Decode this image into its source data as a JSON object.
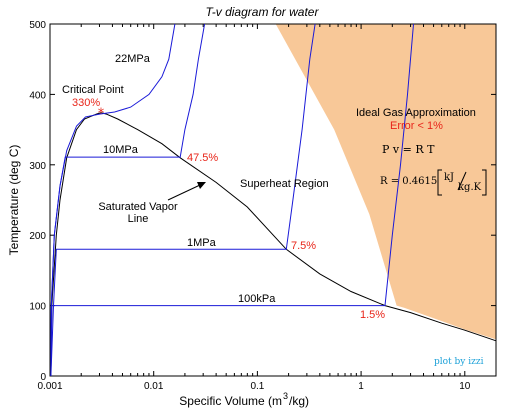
{
  "chart_data": {
    "type": "line",
    "title": "T-v diagram for water",
    "xlabel": "Specific Volume (m",
    "xlabel_sup": "3",
    "xlabel_tail": "/kg)",
    "ylabel": "Temperature (deg C)",
    "x_scale": "log",
    "xlim": [
      0.001,
      20
    ],
    "ylim": [
      0,
      500
    ],
    "x_ticks": [
      0.001,
      0.01,
      0.1,
      1,
      10
    ],
    "x_tick_labels": [
      "0.001",
      "0.01",
      "0.1",
      "1",
      "10"
    ],
    "y_ticks": [
      0,
      100,
      200,
      300,
      400,
      500
    ],
    "y_tick_labels": [
      "0",
      "100",
      "200",
      "300",
      "400",
      "500"
    ],
    "grid": false,
    "colors": {
      "saturation": "#000000",
      "isobar": "#1a1ad8",
      "ideal_gas_region": "#f8c898",
      "label_red": "#e8251a",
      "credit": "#1aa0d8"
    },
    "saturation_dome": {
      "points": [
        [
          0.00102,
          0
        ],
        [
          0.00104,
          100
        ],
        [
          0.00115,
          200
        ],
        [
          0.00125,
          250
        ],
        [
          0.00145,
          310
        ],
        [
          0.0018,
          350
        ],
        [
          0.00215,
          365
        ],
        [
          0.0028,
          372
        ],
        [
          0.0031,
          374
        ],
        [
          0.0035,
          372
        ],
        [
          0.0045,
          365
        ],
        [
          0.007,
          350
        ],
        [
          0.012,
          330
        ],
        [
          0.018,
          310
        ],
        [
          0.04,
          275
        ],
        [
          0.08,
          240
        ],
        [
          0.19,
          180
        ],
        [
          0.4,
          145
        ],
        [
          0.8,
          120
        ],
        [
          1.7,
          100
        ],
        [
          3,
          90
        ],
        [
          6,
          75
        ],
        [
          10,
          65
        ],
        [
          20,
          50
        ]
      ]
    },
    "isobars": [
      {
        "name": "22MPa",
        "points": [
          [
            0.00102,
            0
          ],
          [
            0.00102,
            60
          ],
          [
            0.00103,
            100
          ],
          [
            0.0011,
            200
          ],
          [
            0.00125,
            270
          ],
          [
            0.00145,
            320
          ],
          [
            0.0018,
            355
          ],
          [
            0.0022,
            368
          ],
          [
            0.003,
            372
          ],
          [
            0.0042,
            375
          ],
          [
            0.006,
            382
          ],
          [
            0.009,
            400
          ],
          [
            0.012,
            425
          ],
          [
            0.014,
            450
          ],
          [
            0.016,
            500
          ]
        ]
      },
      {
        "name": "10MPa",
        "points": [
          [
            0.00102,
            0
          ],
          [
            0.00103,
            100
          ],
          [
            0.0011,
            200
          ],
          [
            0.00125,
            270
          ],
          [
            0.0014,
            311
          ],
          [
            0.018,
            311
          ],
          [
            0.02,
            350
          ],
          [
            0.024,
            400
          ],
          [
            0.027,
            450
          ],
          [
            0.031,
            500
          ]
        ]
      },
      {
        "name": "1MPa",
        "points": [
          [
            0.00102,
            0
          ],
          [
            0.00108,
            100
          ],
          [
            0.00115,
            180
          ],
          [
            0.19,
            180
          ],
          [
            0.22,
            250
          ],
          [
            0.27,
            350
          ],
          [
            0.32,
            450
          ],
          [
            0.36,
            500
          ]
        ]
      },
      {
        "name": "100kPa",
        "points": [
          [
            0.00102,
            0
          ],
          [
            0.00104,
            100
          ],
          [
            1.7,
            100
          ],
          [
            2.0,
            200
          ],
          [
            2.4,
            300
          ],
          [
            2.8,
            400
          ],
          [
            3.2,
            500
          ]
        ]
      }
    ],
    "ideal_gas_region": {
      "points": [
        [
          0.15,
          500
        ],
        [
          0.55,
          350
        ],
        [
          1.2,
          230
        ],
        [
          2.2,
          100
        ],
        [
          2.6,
          97
        ],
        [
          6,
          78
        ],
        [
          10,
          66
        ],
        [
          20,
          52
        ],
        [
          20,
          500
        ]
      ]
    },
    "annotations": {
      "critical_point": {
        "label": "Critical Point",
        "value": "330%",
        "x": 0.0031,
        "y": 374
      },
      "isobar_22": "22MPa",
      "isobar_10": "10MPa",
      "isobar_1": "1MPa",
      "isobar_100k": "100kPa",
      "err_10": "47.5%",
      "err_1": "7.5%",
      "err_100k": "1.5%",
      "sat_line_1": "Saturated Vapor",
      "sat_line_2": "Line",
      "superheat": "Superheat Region",
      "ideal_title": "Ideal Gas Approximation",
      "ideal_error": "Error < 1%",
      "pv_eq": "P v = R T",
      "r_eq_prefix": "R = 0.4615",
      "r_unit_num": "kJ",
      "r_unit_den": "kg.K",
      "credit": "plot by izzi"
    }
  }
}
